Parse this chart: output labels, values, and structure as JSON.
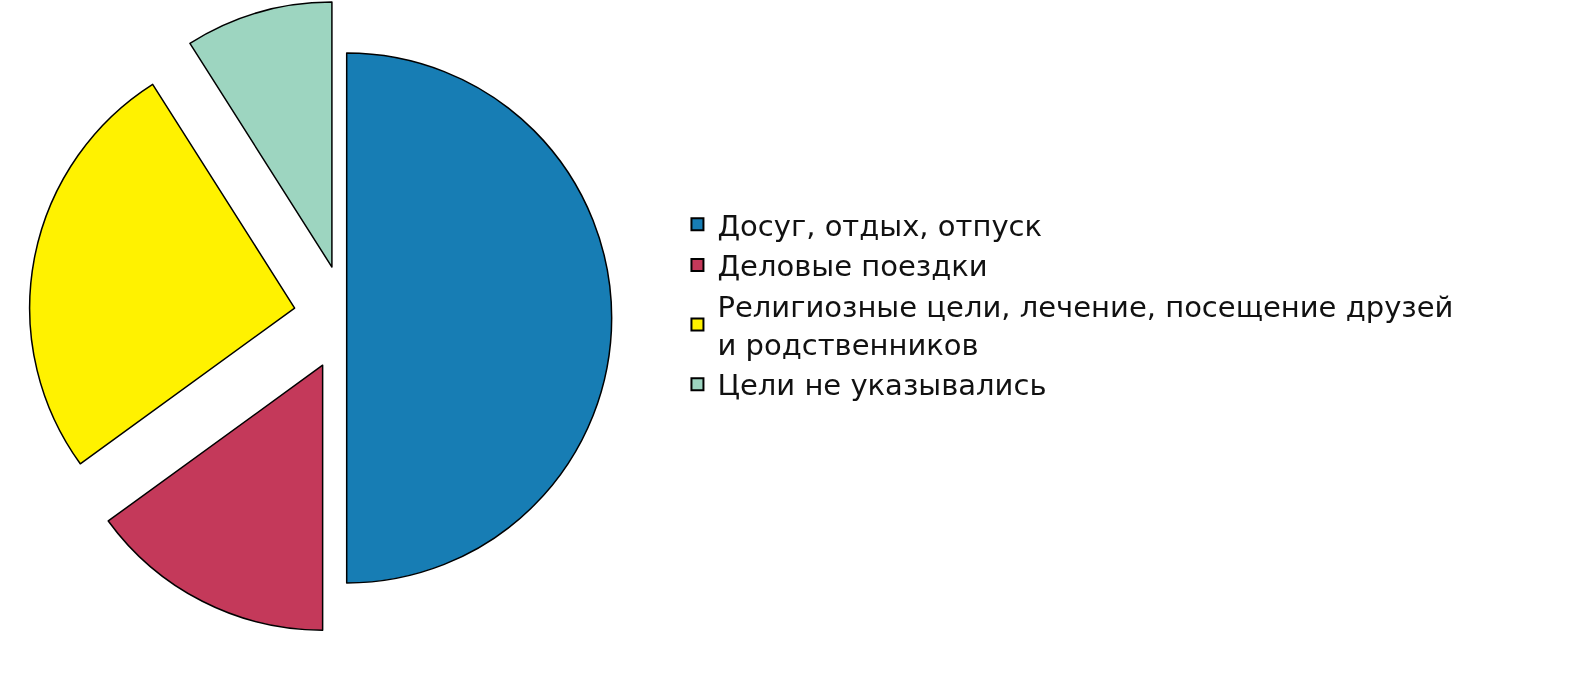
{
  "chart_data": {
    "type": "pie",
    "categories": [
      "Досуг, отдых, отпуск",
      "Деловые поездки",
      "Религиозные цели, лечение, посещение друзей и родственников",
      "Цели не указывались"
    ],
    "values": [
      50,
      15,
      26,
      9
    ],
    "colors": [
      "#177db4",
      "#c4395a",
      "#fff200",
      "#9dd5c0"
    ],
    "legend": "right"
  }
}
